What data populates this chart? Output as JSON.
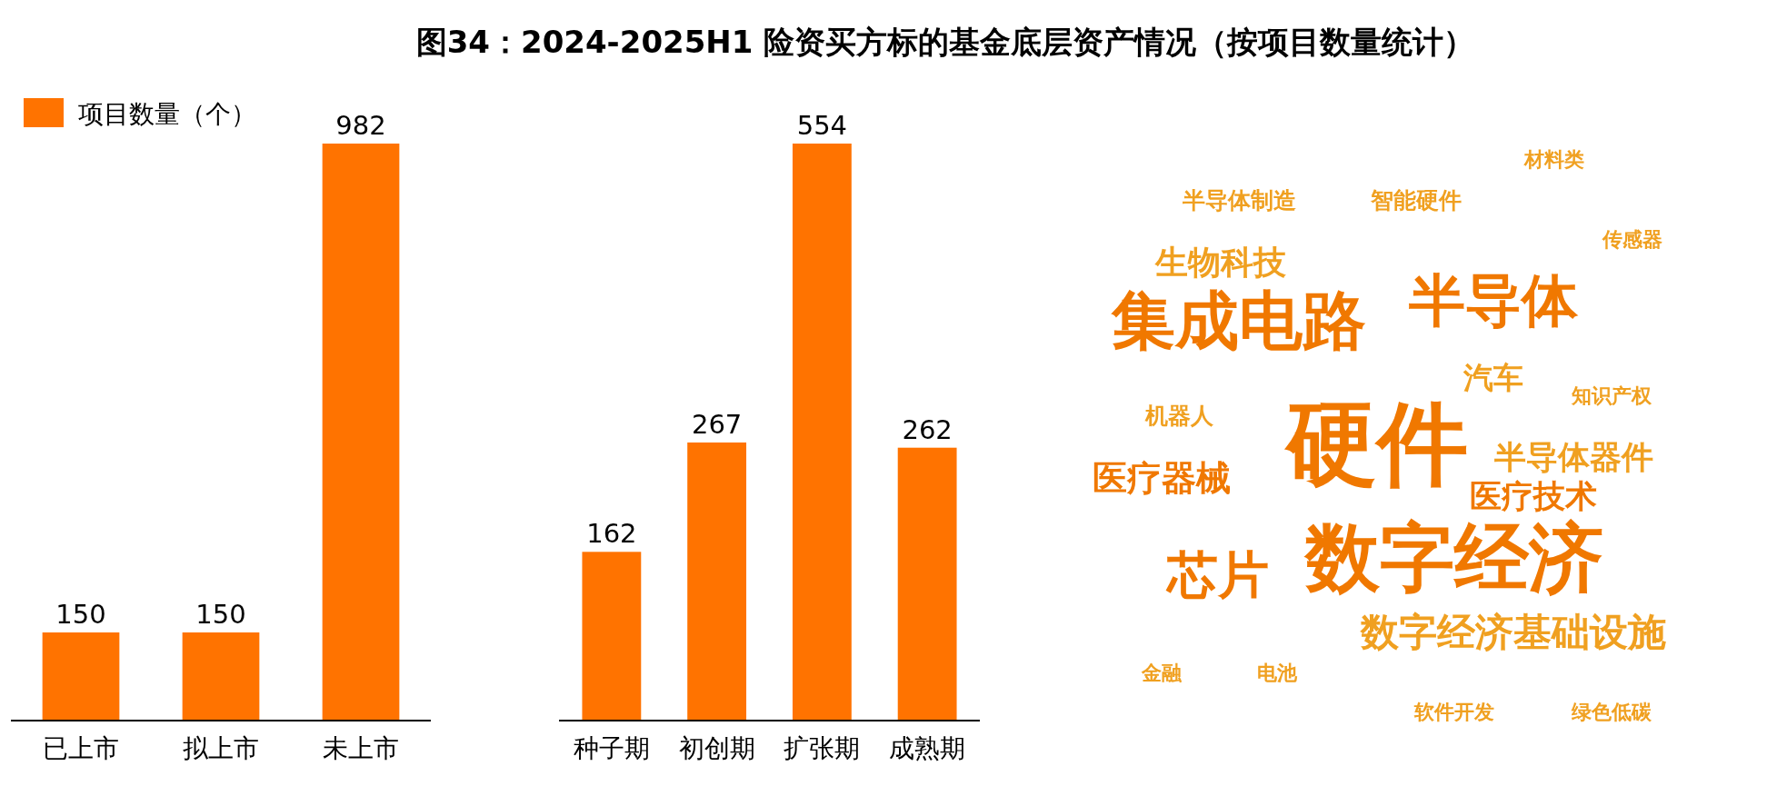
{
  "chart_data": [
    {
      "type": "bar",
      "categories": [
        "已上市",
        "拟上市",
        "未上市"
      ],
      "series": [
        {
          "name": "项目数量（个）",
          "color": "#ff7300",
          "values": [
            150,
            150,
            982
          ]
        }
      ],
      "data_labels": true,
      "legend": "top left"
    },
    {
      "type": "bar",
      "title": "图34：2024-2025H1 险资买方标的基金底层资产情况（按项目数量统计）",
      "categories": [
        "种子期",
        "初创期",
        "扩张期",
        "成熟期"
      ],
      "values": [
        162,
        267,
        554,
        262
      ],
      "color": "#ff7300",
      "data_labels": true
    },
    {
      "type": "other",
      "annotations": [
        "材料类",
        "半导体制造",
        "智能硬件",
        "传感器",
        "生物科技",
        "集成电路",
        "半导体",
        "汽车",
        "知识产权",
        "机器人",
        "硬件",
        "半导体器件",
        "医疗器械",
        "医疗技术",
        "芯片",
        "数字经济",
        "数字经济基础设施",
        "金融",
        "电池",
        "软件开发",
        "绿色低碳"
      ]
    }
  ]
}
